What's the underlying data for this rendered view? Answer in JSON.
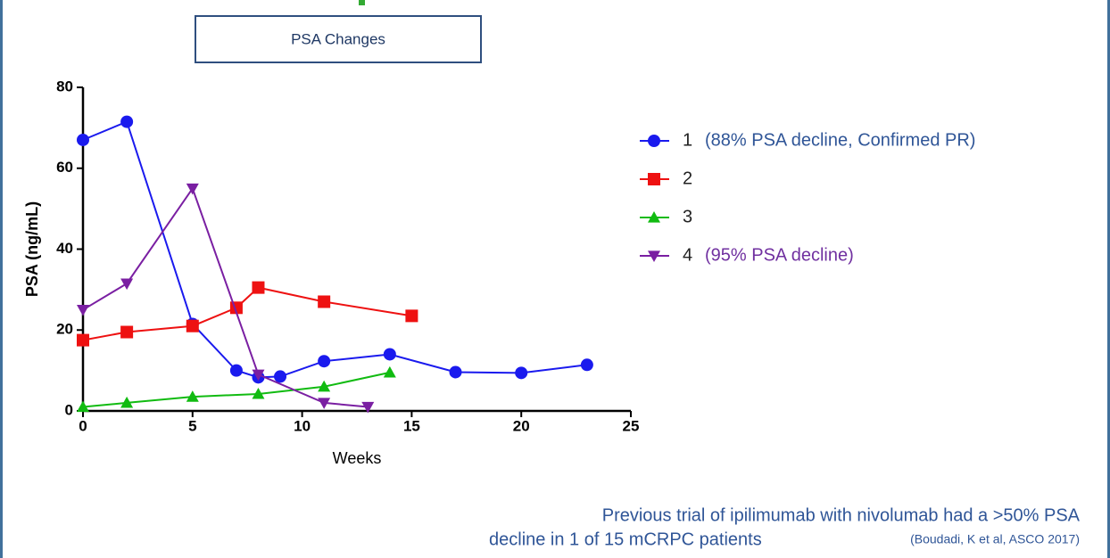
{
  "chart_data": {
    "type": "line",
    "title": "PSA Changes",
    "xlabel": "Weeks",
    "ylabel": "PSA (ng/mL)",
    "xlim": [
      0,
      25
    ],
    "xticks": [
      0,
      5,
      10,
      15,
      20,
      25
    ],
    "ylim": [
      0,
      80
    ],
    "yticks": [
      0,
      20,
      40,
      60,
      80
    ],
    "series": [
      {
        "name": "1",
        "note": "(88% PSA decline, Confirmed PR)",
        "color": "#1a1aee",
        "note_color": "#2f5597",
        "marker": "circle",
        "x": [
          0,
          2,
          5,
          7,
          8,
          9,
          11,
          14,
          17,
          20,
          23
        ],
        "values": [
          67,
          71.5,
          21.5,
          10,
          8.3,
          8.5,
          12.3,
          14,
          9.6,
          9.4,
          11.4
        ]
      },
      {
        "name": "2",
        "color": "#ee1111",
        "marker": "square",
        "x": [
          0,
          2,
          5,
          7,
          8,
          11,
          15
        ],
        "values": [
          17.5,
          19.5,
          21,
          25.5,
          30.5,
          27,
          23.5
        ]
      },
      {
        "name": "3",
        "color": "#11bb11",
        "marker": "triangle",
        "x": [
          0,
          2,
          5,
          8,
          11,
          14
        ],
        "values": [
          1,
          2,
          3.5,
          4.2,
          6,
          9.5
        ]
      },
      {
        "name": "4",
        "note": "(95% PSA decline)",
        "color": "#7a1fa2",
        "note_color": "#7030a0",
        "marker": "triangle-down",
        "x": [
          0,
          2,
          5,
          8,
          11,
          13
        ],
        "values": [
          25,
          31.5,
          55,
          9,
          2,
          1
        ]
      }
    ],
    "footer": {
      "line1": "Previous trial of ipilimumab with nivolumab had a >50% PSA",
      "line2": "decline in 1 of 15 mCRPC patients",
      "citation": "(Boudadi, K et al, ASCO 2017)"
    }
  }
}
